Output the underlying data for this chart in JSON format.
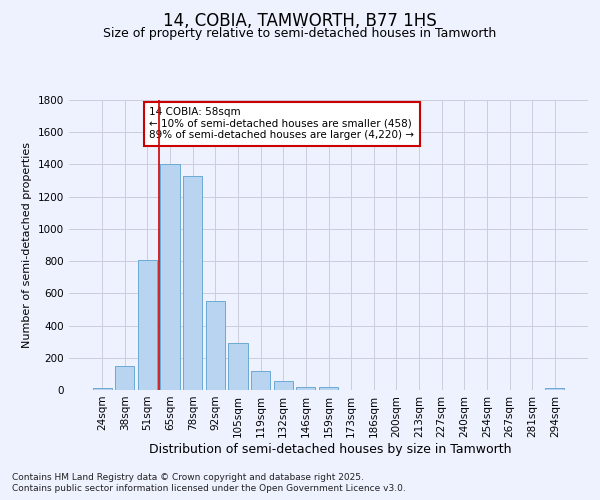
{
  "title": "14, COBIA, TAMWORTH, B77 1HS",
  "subtitle": "Size of property relative to semi-detached houses in Tamworth",
  "xlabel": "Distribution of semi-detached houses by size in Tamworth",
  "ylabel": "Number of semi-detached properties",
  "categories": [
    "24sqm",
    "38sqm",
    "51sqm",
    "65sqm",
    "78sqm",
    "92sqm",
    "105sqm",
    "119sqm",
    "132sqm",
    "146sqm",
    "159sqm",
    "173sqm",
    "186sqm",
    "200sqm",
    "213sqm",
    "227sqm",
    "240sqm",
    "254sqm",
    "267sqm",
    "281sqm",
    "294sqm"
  ],
  "values": [
    15,
    148,
    810,
    1400,
    1330,
    550,
    290,
    120,
    55,
    20,
    20,
    0,
    0,
    0,
    0,
    0,
    0,
    0,
    0,
    0,
    12
  ],
  "bar_color": "#b8d4f0",
  "bar_edge_color": "#6aaad4",
  "vline_color": "#cc0000",
  "annotation_text": "14 COBIA: 58sqm\n← 10% of semi-detached houses are smaller (458)\n89% of semi-detached houses are larger (4,220) →",
  "annotation_box_color": "white",
  "annotation_box_edge_color": "#cc0000",
  "ylim": [
    0,
    1800
  ],
  "yticks": [
    0,
    200,
    400,
    600,
    800,
    1000,
    1200,
    1400,
    1600,
    1800
  ],
  "grid_color": "#ccccdd",
  "bg_color": "#eef2ff",
  "footer_line1": "Contains HM Land Registry data © Crown copyright and database right 2025.",
  "footer_line2": "Contains public sector information licensed under the Open Government Licence v3.0.",
  "title_fontsize": 12,
  "subtitle_fontsize": 9,
  "xlabel_fontsize": 9,
  "ylabel_fontsize": 8,
  "tick_fontsize": 7.5,
  "annotation_fontsize": 7.5,
  "footer_fontsize": 6.5,
  "vline_pos": 2.5
}
